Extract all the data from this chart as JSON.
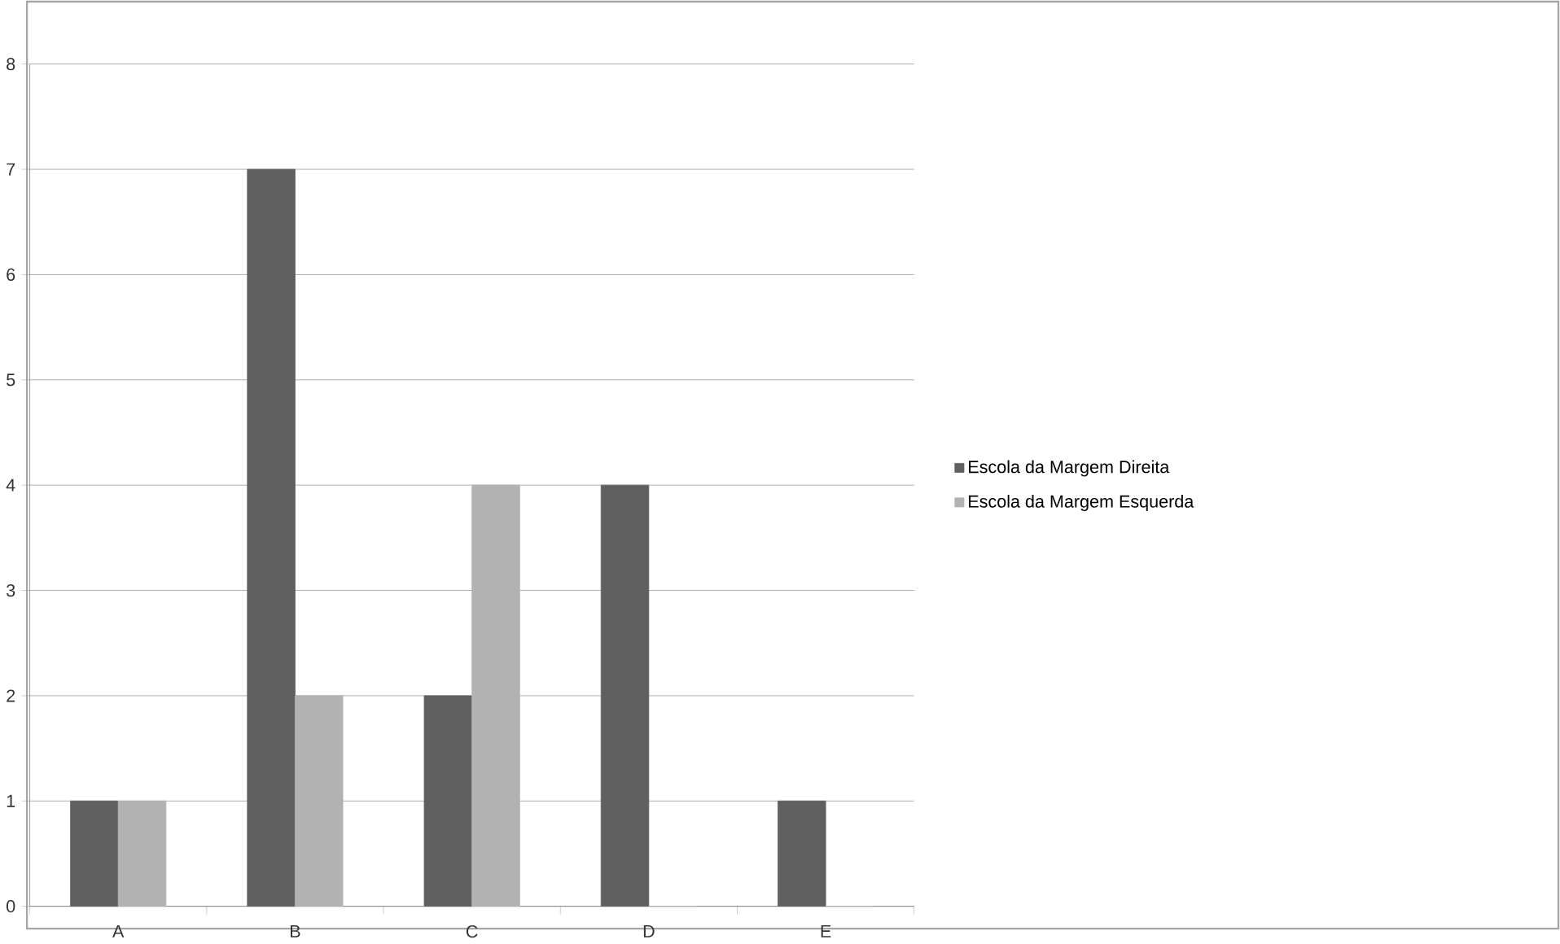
{
  "chart_data": {
    "type": "bar",
    "categories": [
      "A",
      "B",
      "C",
      "D",
      "E"
    ],
    "series": [
      {
        "name": "Escola da Margem Direita",
        "color": "#606060",
        "values": [
          1,
          7,
          2,
          4,
          1
        ]
      },
      {
        "name": "Escola da Margem Esquerda",
        "color": "#b2b2b2",
        "values": [
          1,
          2,
          4,
          0,
          0
        ]
      }
    ],
    "ylim": [
      0,
      8
    ],
    "yticks": [
      0,
      1,
      2,
      3,
      4,
      5,
      6,
      7,
      8
    ],
    "grid": "y",
    "legend": "right"
  }
}
